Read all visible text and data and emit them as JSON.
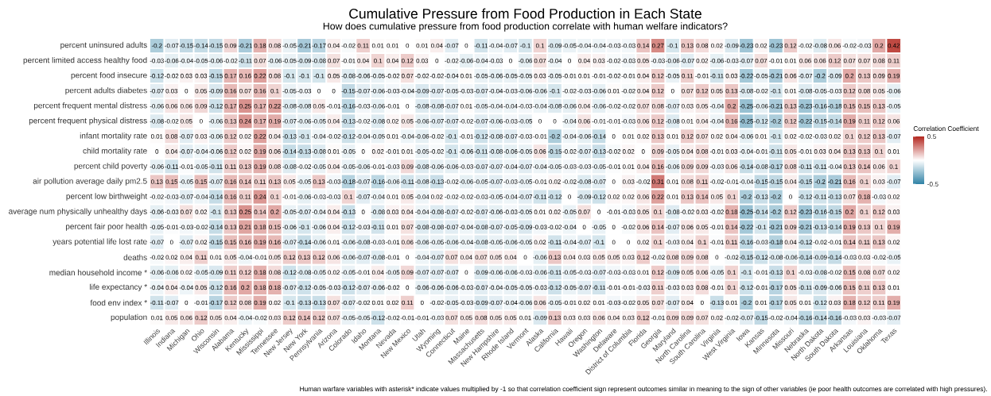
{
  "chart_data": {
    "type": "heatmap",
    "title": "Cumulative Pressure from Food Production in Each State",
    "subtitle": "How does cumulative pressure from food production correlate with human welfare indicators?",
    "categories": [
      "Illinois",
      "Indiana",
      "Michigan",
      "Ohio",
      "Wisconsin",
      "Alabama",
      "Kentucky",
      "Mississippi",
      "Tennessee",
      "New Jersey",
      "New York",
      "Pennsylvania",
      "Arizona",
      "Colorado",
      "Idaho",
      "Montana",
      "Nevada",
      "New Mexico",
      "Utah",
      "Wyoming",
      "Connecticut",
      "Maine",
      "Massachusetts",
      "New Hampshire",
      "Rhode Island",
      "Vermont",
      "Alaska",
      "California",
      "Hawaii",
      "Oregon",
      "Washington",
      "Delaware",
      "District of Columbia",
      "Florida",
      "Georgia",
      "Maryland",
      "North Carolina",
      "South Carolina",
      "Virginia",
      "West Virginia",
      "Iowa",
      "Kansas",
      "Minnesota",
      "Missouri",
      "Nebraska",
      "North Dakota",
      "South Dakota",
      "Arkansas",
      "Louisiana",
      "Oklahoma",
      "Texas"
    ],
    "y_categories": [
      "percent uninsured adults",
      "percent limited access healthy food",
      "percent food insecure",
      "percent adults diabetes",
      "percent frequent mental distress",
      "percent frequent physical distress",
      "infant mortality rate",
      "child mortality rate",
      "percent child poverty",
      "air pollution average daily pm2.5",
      "percent low birthweight",
      "average num physically unhealthy days",
      "percent fair poor health",
      "years potential life lost rate",
      "deaths",
      "median household income *",
      "life expectancy *",
      "food env index *",
      "population"
    ],
    "cells": [
      [
        -0.2,
        -0.07,
        -0.15,
        -0.14,
        -0.15,
        0.09,
        -0.21,
        0.18,
        0.08,
        -0.05,
        -0.21,
        -0.17,
        0.04,
        -0.02,
        0.11,
        0.01,
        0.01,
        0,
        0.01,
        0.04,
        -0.07,
        0,
        -0.11,
        -0.04,
        -0.07,
        -0.1,
        0.1,
        -0.09,
        -0.05,
        -0.04,
        -0.04,
        -0.03,
        -0.03,
        0.14,
        0.27,
        -0.1,
        0.13,
        0.08,
        0.02,
        -0.09,
        -0.23,
        0.02,
        -0.23,
        0.12,
        -0.02,
        -0.08,
        0.06,
        -0.02,
        -0.03,
        0.2,
        0.42
      ],
      [
        -0.03,
        -0.06,
        -0.04,
        -0.05,
        -0.06,
        -0.02,
        -0.11,
        0.07,
        -0.06,
        -0.05,
        -0.09,
        -0.08,
        0.07,
        -0.01,
        0.04,
        0.1,
        0.04,
        0.12,
        0.03,
        0,
        -0.02,
        -0.06,
        -0.04,
        -0.03,
        0,
        -0.06,
        0.07,
        -0.04,
        0,
        0.04,
        0.03,
        -0.02,
        -0.03,
        0.05,
        -0.03,
        -0.06,
        -0.07,
        0.02,
        -0.06,
        -0.03,
        -0.07,
        0.07,
        -0.01,
        0.01,
        0.06,
        0.06,
        0.12,
        0.07,
        0.07,
        0.08,
        0.11
      ],
      [
        -0.12,
        -0.02,
        0.03,
        0.03,
        -0.15,
        0.17,
        0.16,
        0.22,
        0.08,
        -0.1,
        -0.1,
        -0.1,
        0.05,
        -0.08,
        -0.06,
        -0.05,
        -0.02,
        0.07,
        -0.02,
        -0.02,
        -0.04,
        0.01,
        -0.05,
        -0.06,
        -0.05,
        -0.05,
        0.03,
        -0.05,
        -0.01,
        0.01,
        -0.01,
        -0.02,
        -0.01,
        0.04,
        0.12,
        -0.05,
        0.11,
        -0.01,
        -0.11,
        0.03,
        -0.22,
        -0.05,
        -0.21,
        0.06,
        -0.07,
        -0.2,
        -0.09,
        0.2,
        0.13,
        0.09,
        0.19
      ],
      [
        -0.07,
        0.03,
        0,
        0.05,
        -0.09,
        0.16,
        0.07,
        0.16,
        0.1,
        -0.05,
        -0.03,
        0,
        0,
        -0.15,
        -0.07,
        -0.06,
        -0.03,
        -0.04,
        -0.09,
        -0.07,
        -0.05,
        -0.03,
        -0.07,
        -0.04,
        -0.03,
        -0.06,
        -0.06,
        -0.1,
        -0.02,
        -0.03,
        -0.06,
        0.01,
        -0.02,
        0.04,
        0.12,
        0,
        0.07,
        0.12,
        0.05,
        0.13,
        -0.08,
        -0.02,
        -0.1,
        0.01,
        -0.08,
        -0.05,
        -0.03,
        0.12,
        0.08,
        0.05,
        -0.06
      ],
      [
        -0.06,
        0.06,
        0.06,
        0.09,
        -0.12,
        0.17,
        0.25,
        0.17,
        0.22,
        -0.08,
        -0.08,
        0.05,
        -0.01,
        -0.16,
        -0.03,
        -0.06,
        -0.01,
        0,
        -0.08,
        -0.08,
        -0.07,
        0.01,
        -0.05,
        -0.04,
        -0.04,
        -0.03,
        -0.04,
        -0.08,
        -0.06,
        0.04,
        -0.06,
        -0.02,
        -0.02,
        0.07,
        0.08,
        -0.07,
        0.03,
        0.05,
        -0.04,
        0.2,
        -0.25,
        -0.06,
        -0.21,
        0.13,
        -0.23,
        -0.16,
        -0.18,
        0.15,
        0.15,
        0.13,
        -0.05
      ],
      [
        -0.08,
        -0.02,
        0.05,
        0,
        -0.06,
        0.13,
        0.24,
        0.17,
        0.19,
        -0.07,
        -0.06,
        -0.05,
        0.04,
        -0.13,
        -0.02,
        -0.08,
        0.02,
        0.05,
        -0.06,
        -0.07,
        -0.07,
        -0.02,
        -0.07,
        -0.06,
        -0.03,
        -0.05,
        0,
        0,
        -0.04,
        0.06,
        -0.01,
        -0.01,
        -0.03,
        0.06,
        0.12,
        -0.08,
        0.01,
        0.04,
        -0.04,
        0.16,
        -0.25,
        -0.12,
        -0.2,
        0.12,
        -0.22,
        -0.15,
        -0.14,
        0.19,
        0.11,
        0.12,
        0.06
      ],
      [
        0.01,
        0.08,
        -0.07,
        0.03,
        -0.06,
        0.12,
        0.02,
        0.22,
        0.04,
        -0.13,
        -0.1,
        -0.04,
        -0.02,
        -0.12,
        -0.04,
        -0.05,
        0.01,
        -0.04,
        -0.06,
        -0.02,
        -0.1,
        -0.01,
        -0.12,
        -0.08,
        -0.07,
        -0.03,
        -0.01,
        -0.2,
        -0.04,
        -0.06,
        -0.14,
        0,
        0.01,
        0.02,
        0.13,
        0.01,
        0.12,
        0.07,
        0.02,
        0.04,
        -0.06,
        0.01,
        -0.1,
        0.02,
        -0.02,
        -0.03,
        0.02,
        0.1,
        0.12,
        0.13,
        -0.07
      ],
      [
        0,
        0.04,
        -0.07,
        -0.04,
        -0.06,
        0.12,
        0.02,
        0.19,
        0.06,
        -0.14,
        -0.13,
        -0.08,
        0.01,
        -0.05,
        0,
        0.02,
        -0.01,
        0.01,
        -0.05,
        -0.02,
        -0.1,
        -0.06,
        -0.11,
        -0.08,
        -0.06,
        -0.05,
        0.06,
        -0.15,
        -0.02,
        -0.07,
        -0.13,
        -0.02,
        0.02,
        0,
        0.09,
        -0.05,
        0.04,
        0.08,
        -0.01,
        0.03,
        -0.04,
        -0.01,
        -0.11,
        0.05,
        -0.01,
        0.03,
        0.04,
        0.13,
        0.13,
        0.1,
        0.01
      ],
      [
        -0.06,
        -0.11,
        -0.01,
        -0.05,
        -0.11,
        0.11,
        0.13,
        0.19,
        0.08,
        -0.08,
        -0.02,
        -0.05,
        0.04,
        -0.05,
        -0.06,
        -0.01,
        -0.03,
        0.09,
        -0.08,
        -0.06,
        -0.06,
        -0.03,
        -0.07,
        -0.07,
        -0.04,
        -0.07,
        -0.04,
        -0.05,
        -0.03,
        -0.03,
        -0.05,
        -0.01,
        0.01,
        0.04,
        0.16,
        -0.06,
        0.09,
        0.09,
        -0.03,
        0.06,
        -0.14,
        -0.08,
        -0.17,
        0.08,
        -0.11,
        -0.11,
        -0.04,
        0.13,
        0.14,
        0.06,
        0.1
      ],
      [
        0.13,
        0.15,
        -0.05,
        0.15,
        -0.07,
        0.16,
        0.14,
        0.11,
        0.13,
        0.05,
        -0.05,
        0.13,
        -0.03,
        -0.18,
        -0.07,
        -0.16,
        -0.06,
        -0.11,
        -0.08,
        -0.13,
        -0.02,
        -0.06,
        -0.05,
        -0.07,
        -0.03,
        -0.05,
        -0.01,
        0.02,
        -0.02,
        -0.08,
        -0.07,
        0,
        0.03,
        -0.02,
        0.31,
        0.01,
        0.08,
        0.11,
        -0.02,
        -0.01,
        -0.04,
        -0.15,
        -0.15,
        0.04,
        -0.15,
        -0.2,
        -0.21,
        0.16,
        0.1,
        0.03,
        -0.07
      ],
      [
        -0.02,
        -0.03,
        -0.07,
        -0.04,
        -0.14,
        0.16,
        0.11,
        0.24,
        0.1,
        -0.01,
        -0.06,
        -0.03,
        -0.03,
        0.1,
        -0.07,
        -0.04,
        0.01,
        0.05,
        -0.04,
        0.02,
        -0.02,
        -0.02,
        -0.03,
        -0.05,
        -0.04,
        -0.07,
        -0.11,
        -0.12,
        0,
        -0.09,
        -0.12,
        0.02,
        0.02,
        0.06,
        0.22,
        0.01,
        0.13,
        0.14,
        0.05,
        0.1,
        -0.2,
        -0.13,
        -0.2,
        0,
        -0.12,
        -0.11,
        -0.13,
        0.07,
        0.18,
        -0.03,
        0.02
      ],
      [
        -0.06,
        -0.03,
        0.07,
        0.02,
        -0.1,
        0.13,
        0.25,
        0.14,
        0.2,
        -0.05,
        -0.07,
        -0.04,
        0.04,
        -0.13,
        0,
        -0.08,
        0.03,
        0.04,
        -0.04,
        -0.08,
        -0.07,
        -0.02,
        -0.07,
        -0.06,
        -0.03,
        -0.05,
        0.01,
        0.02,
        -0.05,
        0.07,
        0,
        -0.01,
        -0.03,
        0.05,
        0.1,
        -0.08,
        -0.02,
        0.03,
        -0.02,
        0.18,
        -0.25,
        -0.14,
        -0.2,
        0.12,
        -0.23,
        -0.16,
        -0.15,
        0.2,
        0.1,
        0.12,
        0.03
      ],
      [
        -0.05,
        -0.01,
        -0.03,
        -0.02,
        -0.14,
        0.13,
        0.21,
        0.18,
        0.15,
        -0.06,
        -0.1,
        -0.06,
        0.04,
        -0.12,
        -0.03,
        -0.11,
        0.01,
        0.07,
        -0.08,
        -0.08,
        -0.07,
        -0.04,
        -0.08,
        -0.07,
        -0.05,
        -0.09,
        -0.03,
        -0.02,
        -0.04,
        0,
        -0.05,
        0,
        -0.02,
        0.06,
        0.14,
        -0.07,
        0.06,
        0.05,
        -0.01,
        0.14,
        -0.22,
        -0.1,
        -0.21,
        0.09,
        -0.21,
        -0.13,
        -0.14,
        0.19,
        0.13,
        0.1,
        0.19
      ],
      [
        -0.07,
        0,
        -0.07,
        0.02,
        -0.15,
        0.15,
        0.16,
        0.19,
        0.16,
        -0.07,
        -0.14,
        -0.06,
        0.01,
        -0.06,
        -0.08,
        -0.03,
        -0.01,
        0.06,
        -0.06,
        -0.05,
        -0.06,
        -0.04,
        -0.08,
        -0.05,
        -0.06,
        -0.05,
        0.02,
        -0.11,
        -0.04,
        -0.07,
        -0.1,
        0,
        0,
        0.02,
        0.1,
        -0.03,
        0.04,
        0.1,
        -0.01,
        0.11,
        -0.16,
        -0.03,
        -0.18,
        0.04,
        -0.12,
        -0.02,
        -0.01,
        0.14,
        0.11,
        0.13,
        0.02
      ],
      [
        -0.02,
        0.02,
        0.04,
        0.11,
        0.01,
        0.05,
        -0.04,
        -0.01,
        0.05,
        0.12,
        0.13,
        0.12,
        0.06,
        -0.06,
        -0.07,
        -0.08,
        -0.01,
        0,
        -0.04,
        -0.07,
        0.07,
        0.04,
        0.07,
        0.05,
        0.04,
        0,
        -0.06,
        0.13,
        0.04,
        0.03,
        0.05,
        0.05,
        0.03,
        0.12,
        -0.02,
        0.08,
        0.09,
        0.08,
        0,
        -0.02,
        -0.15,
        -0.12,
        -0.08,
        -0.06,
        -0.14,
        -0.09,
        -0.14,
        -0.03,
        0.03,
        -0.02,
        -0.05
      ],
      [
        -0.06,
        -0.06,
        0.02,
        -0.05,
        -0.09,
        0.11,
        0.12,
        0.18,
        0.08,
        -0.12,
        -0.08,
        -0.05,
        0.02,
        -0.05,
        -0.01,
        0.04,
        -0.05,
        0.09,
        -0.07,
        -0.07,
        -0.07,
        0,
        -0.09,
        -0.06,
        -0.06,
        -0.03,
        -0.06,
        -0.11,
        -0.05,
        -0.03,
        -0.07,
        -0.03,
        -0.03,
        0.01,
        0.12,
        -0.09,
        0.05,
        0.06,
        -0.05,
        0.1,
        -0.1,
        -0.01,
        -0.13,
        0.1,
        -0.03,
        -0.08,
        -0.02,
        0.15,
        0.08,
        0.07,
        0.02
      ],
      [
        -0.04,
        0.04,
        -0.04,
        0.05,
        -0.12,
        0.16,
        0.2,
        0.18,
        0.18,
        -0.07,
        -0.12,
        -0.05,
        -0.03,
        -0.12,
        -0.07,
        -0.06,
        -0.02,
        0,
        -0.06,
        -0.06,
        -0.06,
        -0.03,
        -0.07,
        -0.04,
        -0.05,
        -0.05,
        -0.03,
        -0.12,
        -0.05,
        -0.07,
        -0.11,
        -0.01,
        -0.01,
        -0.03,
        0.11,
        -0.03,
        0.03,
        0.08,
        -0.01,
        0.1,
        -0.12,
        -0.01,
        -0.17,
        0.05,
        -0.11,
        -0.09,
        -0.06,
        0.15,
        0.11,
        0.13,
        0.01
      ],
      [
        -0.11,
        -0.07,
        0,
        -0.01,
        -0.17,
        0.12,
        0.08,
        0.19,
        0.02,
        -0.1,
        -0.13,
        -0.13,
        0.07,
        -0.07,
        -0.02,
        0.01,
        0.02,
        0.11,
        0,
        -0.02,
        -0.05,
        -0.03,
        -0.09,
        -0.07,
        -0.04,
        -0.06,
        0.06,
        -0.05,
        -0.01,
        0.02,
        0.01,
        -0.03,
        -0.02,
        0.05,
        0.07,
        -0.07,
        0.04,
        0,
        -0.13,
        0.01,
        -0.2,
        0.01,
        -0.17,
        0.05,
        0.01,
        -0.12,
        0.03,
        0.18,
        0.12,
        0.11,
        0.19
      ],
      [
        0.01,
        0.05,
        0.06,
        0.12,
        0.05,
        0.04,
        -0.04,
        -0.02,
        0.03,
        0.12,
        0.14,
        0.12,
        0.07,
        -0.05,
        -0.05,
        -0.12,
        -0.02,
        -0.01,
        -0.01,
        -0.03,
        0.07,
        0.05,
        0.08,
        0.05,
        0.05,
        0.01,
        -0.09,
        0.13,
        0.03,
        0.03,
        0.06,
        0.04,
        0.03,
        0.12,
        -0.01,
        0.09,
        0.09,
        0.07,
        0.02,
        -0.02,
        -0.07,
        -0.15,
        -0.02,
        -0.04,
        -0.16,
        -0.14,
        -0.16,
        -0.03,
        0.03,
        -0.03,
        -0.07
      ]
    ],
    "data_labels": true,
    "colors": [
      "#2f82a6",
      "#ffffff",
      "#b3261e"
    ],
    "clim": [
      -0.5,
      0.5
    ],
    "cticks": [
      0.5,
      -0.5
    ],
    "clabel": "Correlation Coefficient",
    "annotations": [
      "Human warfare variables with asterisk* indicate values multiplied by -1 so that correlation coefficient sign represent outcomes similar in meaning to the sign of other variables (ie poor health outcomes are correlated with high pressures)."
    ]
  }
}
